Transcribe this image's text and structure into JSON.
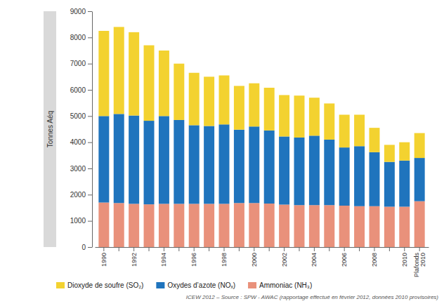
{
  "chart_data": {
    "type": "bar",
    "stacked": true,
    "y_label": "Tonnes Aéq",
    "annotations": [
      "ICEW 2012 – Source : SPW - AWAC (rapportage effectué en février 2012, données 2010 provisoires)"
    ],
    "categories": [
      "1990",
      null,
      "1992",
      null,
      "1994",
      null,
      "1996",
      null,
      "1998",
      null,
      "2000",
      null,
      "2002",
      null,
      "2004",
      null,
      "2006",
      null,
      "2008",
      null,
      "2010",
      "Plafonds 2010"
    ],
    "series": [
      {
        "name": "Dioxyde de soufre (SO₂)",
        "color": "#f3d230",
        "values": [
          3250,
          3320,
          3180,
          2880,
          2500,
          2150,
          2000,
          1880,
          1870,
          1670,
          1650,
          1630,
          1580,
          1600,
          1450,
          1380,
          1250,
          1200,
          930,
          650,
          700,
          950
        ]
      },
      {
        "name": "Oxydes d’azote (NOₓ)",
        "color": "#1f74bd",
        "values": [
          3300,
          3400,
          3370,
          3190,
          3350,
          3200,
          3000,
          2970,
          3030,
          2800,
          2920,
          2790,
          2600,
          2580,
          2650,
          2500,
          2220,
          2290,
          2060,
          1710,
          1760,
          1650
        ]
      },
      {
        "name": "Ammoniac (NH₃)",
        "color": "#e9917b",
        "values": [
          1700,
          1680,
          1650,
          1630,
          1650,
          1650,
          1650,
          1650,
          1650,
          1680,
          1680,
          1660,
          1620,
          1600,
          1600,
          1600,
          1580,
          1560,
          1560,
          1540,
          1540,
          1750
        ]
      }
    ],
    "ylim": [
      0,
      9000
    ],
    "yticks": [
      0,
      1000,
      2000,
      3000,
      4000,
      5000,
      6000,
      7000,
      8000,
      9000
    ],
    "grid": false,
    "legend": "bottom"
  }
}
